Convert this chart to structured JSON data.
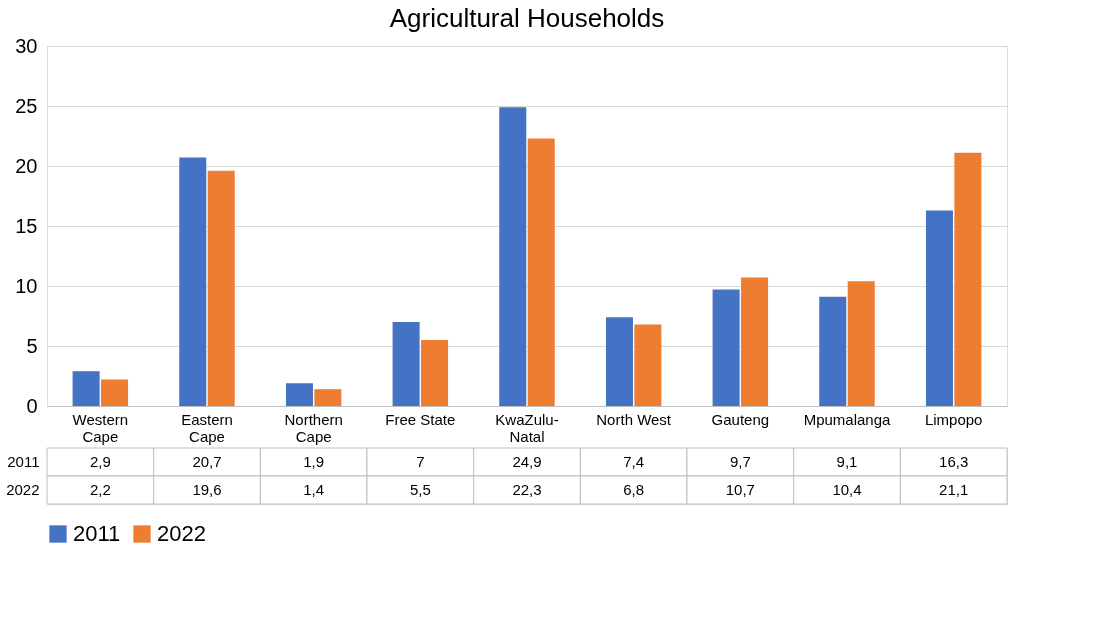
{
  "chart_data": {
    "type": "bar",
    "title": "Agricultural Households",
    "categories": [
      "Western Cape",
      "Eastern Cape",
      "Northern Cape",
      "Free State",
      "KwaZulu-Natal",
      "North West",
      "Gauteng",
      "Mpumalanga",
      "Limpopo"
    ],
    "series": [
      {
        "name": "2011",
        "color": "#4472c4",
        "values": [
          2.9,
          20.7,
          1.9,
          7,
          24.9,
          7.4,
          9.7,
          9.1,
          16.3
        ],
        "value_labels": [
          "2,9",
          "20,7",
          "1,9",
          "7",
          "24,9",
          "7,4",
          "9,7",
          "9,1",
          "16,3"
        ]
      },
      {
        "name": "2022",
        "color": "#ed7d31",
        "values": [
          2.2,
          19.6,
          1.4,
          5.5,
          22.3,
          6.8,
          10.7,
          10.4,
          21.1
        ],
        "value_labels": [
          "2,2",
          "19,6",
          "1,4",
          "5,5",
          "22,3",
          "6,8",
          "10,7",
          "10,4",
          "21,1"
        ]
      }
    ],
    "ylim": [
      0,
      30
    ],
    "yticks": [
      0,
      5,
      10,
      15,
      20,
      25,
      30
    ],
    "grid": "y",
    "legend": "bottom"
  }
}
